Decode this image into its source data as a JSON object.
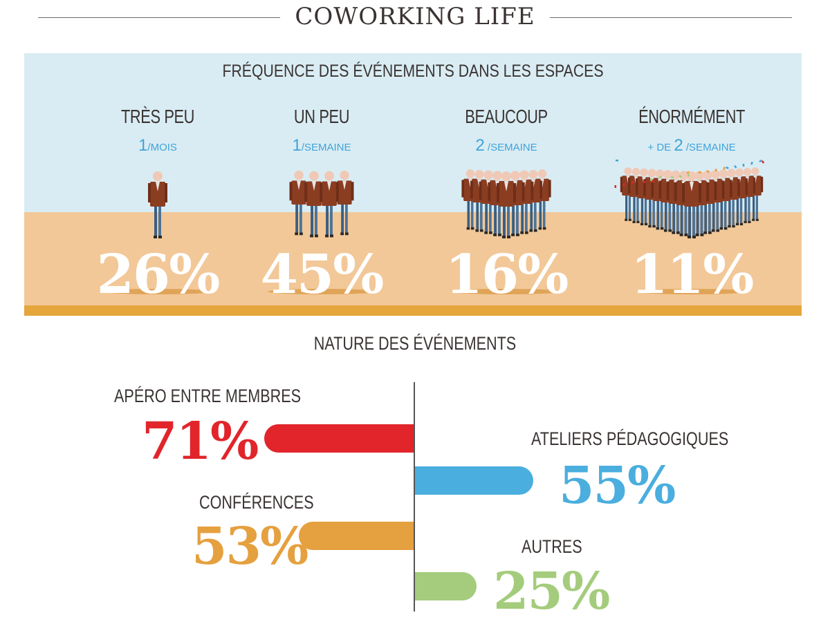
{
  "header": {
    "title": "COWORKING LIFE"
  },
  "colors": {
    "sky": "#d9ecf3",
    "sand": "#f2c898",
    "ground": "#e5a63c",
    "accent_blue": "#3fa3d8",
    "red": "#e1252b",
    "blue": "#4aaede",
    "orange": "#e5a03f",
    "green": "#a4cc7c"
  },
  "frequency": {
    "title": "FRÉQUENCE DES ÉVÉNEMENTS DANS LES ESPACES",
    "columns": [
      {
        "label": "TRÈS PEU",
        "freq_prefix": "",
        "freq_num": "1",
        "freq_unit": "/MOIS",
        "value": "26%",
        "people": 1
      },
      {
        "label": "UN PEU",
        "freq_prefix": "",
        "freq_num": "1",
        "freq_unit": "/SEMAINE",
        "value": "45%",
        "people": 4
      },
      {
        "label": "BEAUCOUP",
        "freq_prefix": "",
        "freq_num": "2",
        "freq_unit": " /SEMAINE",
        "value": "16%",
        "people": 9
      },
      {
        "label": "ÉNORMÉMENT",
        "freq_prefix": "+ DE ",
        "freq_num": "2",
        "freq_unit": " /SEMAINE",
        "value": "11%",
        "people": 17
      }
    ]
  },
  "nature": {
    "title": "NATURE DES ÉVÉNEMENTS",
    "items": [
      {
        "label": "APÉRO ENTRE MEMBRES",
        "value": "71%",
        "side": "left",
        "color": "#e1252b"
      },
      {
        "label": "ATELIERS PÉDAGOGIQUES",
        "value": "55%",
        "side": "right",
        "color": "#4aaede"
      },
      {
        "label": "CONFÉRENCES",
        "value": "53%",
        "side": "left",
        "color": "#e5a03f"
      },
      {
        "label": "AUTRES",
        "value": "25%",
        "side": "right",
        "color": "#a4cc7c"
      }
    ]
  },
  "chart_data": [
    {
      "type": "bar",
      "title": "FRÉQUENCE DES ÉVÉNEMENTS DANS LES ESPACES",
      "categories": [
        "TRÈS PEU",
        "UN PEU",
        "BEAUCOUP",
        "ÉNORMÉMENT"
      ],
      "values": [
        26,
        45,
        16,
        11
      ]
    },
    {
      "type": "bar",
      "title": "NATURE DES ÉVÉNEMENTS",
      "categories": [
        "APÉRO ENTRE MEMBRES",
        "ATELIERS PÉDAGOGIQUES",
        "CONFÉRENCES",
        "AUTRES"
      ],
      "values": [
        71,
        55,
        53,
        25
      ]
    }
  ]
}
